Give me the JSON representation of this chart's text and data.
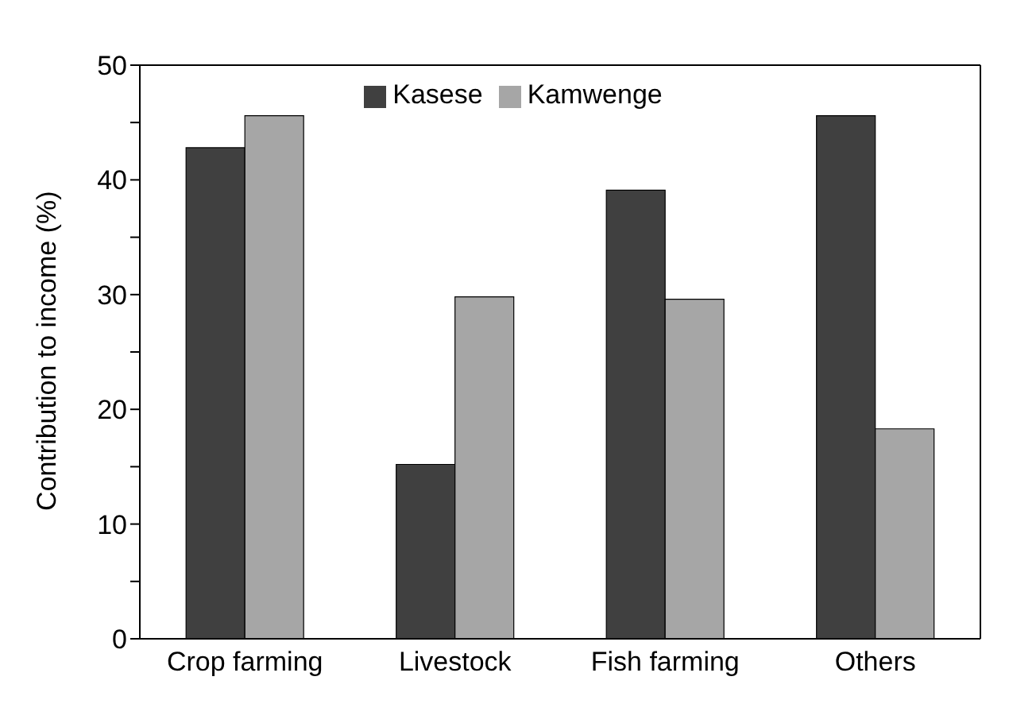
{
  "chart_data": {
    "type": "bar",
    "ylabel": "Contribution to income (%)",
    "categories": [
      "Crop farming",
      "Livestock",
      "Fish farming",
      "Others"
    ],
    "series": [
      {
        "name": "Kasese",
        "color": "#404040",
        "values": [
          42.8,
          15.2,
          39.1,
          45.6
        ]
      },
      {
        "name": "Kamwenge",
        "color": "#a6a6a6",
        "values": [
          45.6,
          29.8,
          29.6,
          18.3
        ]
      }
    ],
    "ylim": [
      0,
      50
    ],
    "yticks": [
      0,
      {
        "value": 5,
        "label": null
      },
      10,
      {
        "value": 15,
        "label": null
      },
      20,
      {
        "value": 25,
        "label": null
      },
      30,
      {
        "value": 35,
        "label": null
      },
      40,
      {
        "value": 45,
        "label": null
      },
      50
    ],
    "grid": false,
    "legend": "top"
  }
}
